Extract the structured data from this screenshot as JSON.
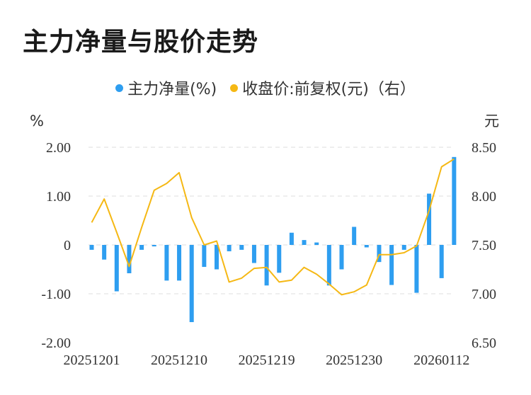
{
  "title": "主力净量与股价走势",
  "legend": {
    "bar_label": "主力净量(%)",
    "line_label": "收盘价:前复权(元)（右）"
  },
  "colors": {
    "bar": "#2e9ef0",
    "line": "#f5b814",
    "grid": "#dddddd"
  },
  "chart_data": {
    "type": "bar",
    "left_axis": {
      "unit": "%",
      "ylim": [
        -2,
        2
      ],
      "ticks": [
        "2.00",
        "1.00",
        "0",
        "-1.00",
        "-2.00"
      ]
    },
    "right_axis": {
      "unit": "元",
      "ylim": [
        6.5,
        8.5
      ],
      "ticks": [
        "8.50",
        "8.00",
        "7.50",
        "7.00",
        "6.50"
      ]
    },
    "x_tick_labels": [
      "20251201",
      "20251210",
      "20251219",
      "20251230",
      "20260112"
    ],
    "x_tick_indices": [
      0,
      7,
      14,
      21,
      28
    ],
    "series": [
      {
        "name": "主力净量(%)",
        "type": "bar",
        "axis": "left",
        "values": [
          -0.1,
          -0.3,
          -0.95,
          -0.58,
          -0.1,
          -0.03,
          -0.73,
          -0.73,
          -1.58,
          -0.45,
          -0.5,
          -0.13,
          -0.1,
          -0.37,
          -0.83,
          -0.57,
          0.25,
          0.1,
          0.05,
          -0.83,
          -0.5,
          0.37,
          -0.05,
          -0.35,
          -0.82,
          -0.1,
          -0.98,
          1.05,
          -0.68,
          1.8
        ]
      },
      {
        "name": "收盘价:前复权(元)（右）",
        "type": "line",
        "axis": "right",
        "values": [
          7.73,
          7.97,
          7.63,
          7.28,
          7.68,
          8.06,
          8.13,
          8.24,
          7.78,
          7.5,
          7.54,
          7.12,
          7.16,
          7.26,
          7.27,
          7.12,
          7.14,
          7.27,
          7.2,
          7.1,
          6.99,
          7.02,
          7.09,
          7.4,
          7.4,
          7.42,
          7.49,
          7.85,
          8.3,
          8.38
        ]
      }
    ]
  }
}
